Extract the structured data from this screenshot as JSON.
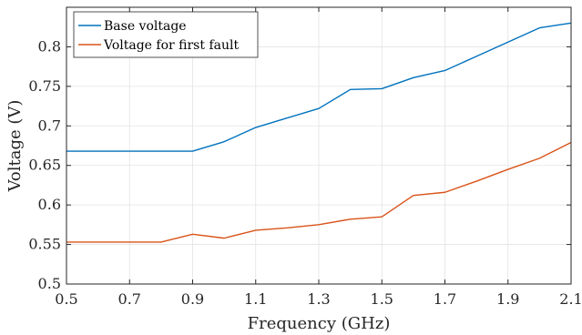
{
  "chart_data": {
    "type": "line",
    "title": "",
    "xlabel": "Frequency (GHz)",
    "ylabel": "Voltage (V)",
    "xlim": [
      0.5,
      2.1
    ],
    "ylim": [
      0.5,
      0.85
    ],
    "x_ticks": [
      "0.5",
      "0.7",
      "0.9",
      "1.1",
      "1.3",
      "1.5",
      "1.7",
      "1.9",
      "2.1"
    ],
    "y_ticks": [
      "0.5",
      "0.55",
      "0.6",
      "0.65",
      "0.7",
      "0.75",
      "0.8"
    ],
    "grid": true,
    "legend_position": "top-left",
    "series": [
      {
        "name": "Base voltage",
        "color": "#0072BD",
        "x": [
          0.5,
          0.6,
          0.7,
          0.8,
          0.9,
          1.0,
          1.1,
          1.2,
          1.3,
          1.4,
          1.5,
          1.6,
          1.7,
          1.8,
          1.9,
          2.0,
          2.1
        ],
        "y": [
          0.668,
          0.668,
          0.668,
          0.668,
          0.668,
          0.68,
          0.698,
          0.71,
          0.722,
          0.746,
          0.747,
          0.761,
          0.77,
          0.788,
          0.806,
          0.824,
          0.83
        ]
      },
      {
        "name": "Voltage for first fault",
        "color": "#D95319",
        "x": [
          0.5,
          0.6,
          0.7,
          0.8,
          0.9,
          1.0,
          1.1,
          1.2,
          1.3,
          1.4,
          1.5,
          1.6,
          1.7,
          1.8,
          1.9,
          2.0,
          2.1
        ],
        "y": [
          0.553,
          0.553,
          0.553,
          0.553,
          0.563,
          0.558,
          0.568,
          0.571,
          0.575,
          0.582,
          0.585,
          0.612,
          0.616,
          0.63,
          0.645,
          0.659,
          0.679
        ]
      }
    ]
  }
}
